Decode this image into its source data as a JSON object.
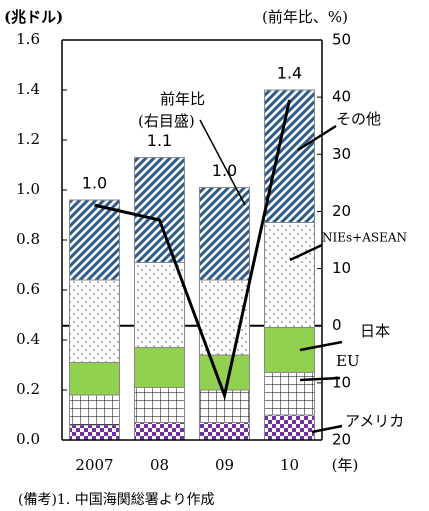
{
  "chart_data": {
    "type": "bar",
    "stacked": true,
    "y_label": "(兆ドル)",
    "y2_label": "(前年比、%)",
    "x_unit": "(年)",
    "categories": [
      "2007",
      "08",
      "09",
      "10"
    ],
    "series": [
      {
        "name": "アメリカ",
        "color": "#7030a0",
        "pattern": "checker",
        "values": [
          0.06,
          0.07,
          0.07,
          0.1
        ]
      },
      {
        "name": "EU",
        "color": "#000000",
        "pattern": "grid",
        "values": [
          0.12,
          0.14,
          0.13,
          0.17
        ]
      },
      {
        "name": "日本",
        "color": "#92d050",
        "pattern": "solid",
        "values": [
          0.13,
          0.16,
          0.14,
          0.18
        ]
      },
      {
        "name": "NIEs+ASEAN",
        "color": "#000000",
        "pattern": "dots",
        "values": [
          0.33,
          0.34,
          0.3,
          0.42
        ]
      },
      {
        "name": "その他",
        "color": "#2e5c8a",
        "pattern": "hatch",
        "values": [
          0.32,
          0.42,
          0.37,
          0.53
        ]
      },
      {
        "name": "前年比",
        "type": "line",
        "axis": "y2",
        "color": "#000000",
        "values": [
          21.1,
          18.5,
          -12.2,
          39.5
        ]
      }
    ],
    "totals": [
      0.96,
      1.13,
      1.01,
      1.4
    ],
    "total_labels": [
      "1.0",
      "1.1",
      "1.0",
      "1.4"
    ],
    "line_annotation": "(右目盛)",
    "ylim": [
      0,
      1.6
    ],
    "yticks": [
      {
        "value": 0,
        "label": "0.0"
      },
      0.2,
      0.4,
      0.6,
      0.8,
      {
        "value": 1,
        "label": "1.0"
      },
      1.2,
      1.4,
      1.6
    ],
    "y2lim": [
      -20,
      50
    ],
    "y2ticks": [
      {
        "value": -20,
        "label": "20"
      },
      {
        "value": -10,
        "label": "10"
      },
      0,
      10,
      20,
      30,
      40,
      50
    ],
    "note": "(備考)1. 中国海関総署より作成"
  }
}
